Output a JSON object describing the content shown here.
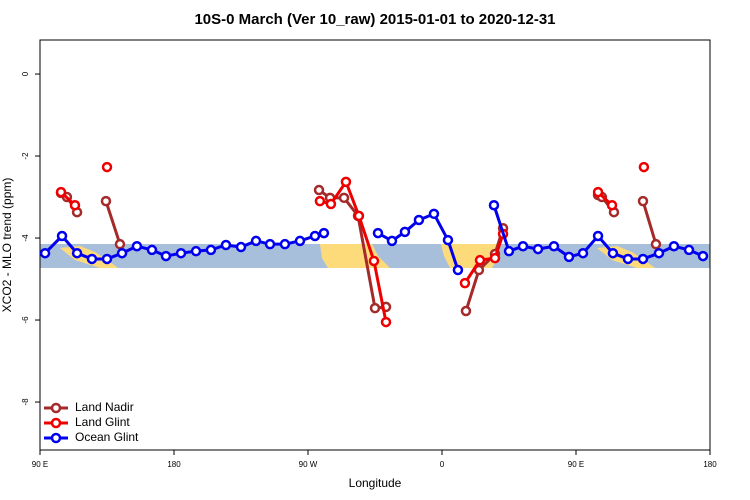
{
  "chart_data": {
    "type": "line",
    "title": "10S-0 March (Ver 10_raw)   2015-01-01 to 2020-12-31",
    "x_label": "Longitude",
    "y_label": "XCO2 - MLO trend (ppm)",
    "xlim": [
      90,
      540
    ],
    "ylim": [
      -9.17,
      0.83
    ],
    "xticks": [
      {
        "value": 90,
        "label": "90 E"
      },
      180,
      {
        "value": 270,
        "label": "90 W"
      },
      {
        "value": 360,
        "label": "0"
      },
      {
        "value": 450,
        "label": "90 E"
      },
      {
        "value": 540,
        "label": "180"
      }
    ],
    "yticks": [
      0,
      -2,
      -4,
      -6,
      -8
    ],
    "legend": "bottom-left",
    "series": [
      {
        "name": "Land Nadir",
        "color": "#a52a2a",
        "x": [
          104.1,
          108.1,
          114.9,
          null,
          134.3,
          143.7,
          null,
          277.4,
          284.8,
          294.2,
          303.6,
          315.0,
          322.4,
          null,
          376.1,
          384.8,
          395.6,
          401.0,
          null,
          464.8,
          467.4,
          475.5,
          null,
          495.0,
          503.7
        ],
        "values": [
          -2.9,
          -3.0,
          -3.37,
          null,
          -3.1,
          -4.15,
          null,
          -2.83,
          -3.02,
          -3.02,
          -3.46,
          -5.71,
          -5.68,
          null,
          -5.78,
          -4.78,
          -4.39,
          -3.76,
          null,
          -2.95,
          -3.0,
          -3.37,
          null,
          -3.1,
          -4.15
        ]
      },
      {
        "name": "Land Glint",
        "color": "#ee0000",
        "x": [
          104.1,
          113.5,
          null,
          135.0,
          null,
          278.0,
          285.4,
          295.5,
          304.2,
          314.3,
          322.4,
          null,
          375.4,
          385.5,
          395.6,
          401.0,
          null,
          464.8,
          474.2,
          null,
          495.6
        ],
        "values": [
          -2.88,
          -3.2,
          null,
          -2.27,
          null,
          -3.1,
          -3.17,
          -2.63,
          -3.46,
          -4.56,
          -6.05,
          null,
          -5.1,
          -4.54,
          -4.49,
          -3.9,
          null,
          -2.88,
          -3.2,
          null,
          -2.27
        ]
      },
      {
        "name": "Ocean Glint",
        "color": "#0000ee",
        "x": [
          93.4,
          104.8,
          114.9,
          124.9,
          135.0,
          145.1,
          155.1,
          165.2,
          174.6,
          184.7,
          194.8,
          204.8,
          214.9,
          225.0,
          235.1,
          244.5,
          254.5,
          264.6,
          274.7,
          280.7,
          null,
          317.0,
          326.4,
          335.1,
          344.5,
          354.6,
          364.0,
          370.7,
          null,
          394.9,
          405.0,
          414.4,
          424.5,
          435.2,
          445.3,
          454.7,
          464.8,
          474.8,
          484.9,
          495.0,
          505.7,
          515.8,
          525.9,
          535.3
        ],
        "values": [
          -4.37,
          -3.95,
          -4.37,
          -4.51,
          -4.51,
          -4.37,
          -4.2,
          -4.29,
          -4.44,
          -4.37,
          -4.32,
          -4.29,
          -4.17,
          -4.22,
          -4.07,
          -4.15,
          -4.15,
          -4.07,
          -3.95,
          -3.88,
          null,
          -3.88,
          -4.07,
          -3.85,
          -3.56,
          -3.41,
          -4.05,
          -4.78,
          null,
          -3.2,
          -4.32,
          -4.2,
          -4.27,
          -4.2,
          -4.46,
          -4.37,
          -3.95,
          -4.37,
          -4.51,
          -4.51,
          -4.37,
          -4.2,
          -4.29,
          -4.44
        ]
      }
    ]
  }
}
